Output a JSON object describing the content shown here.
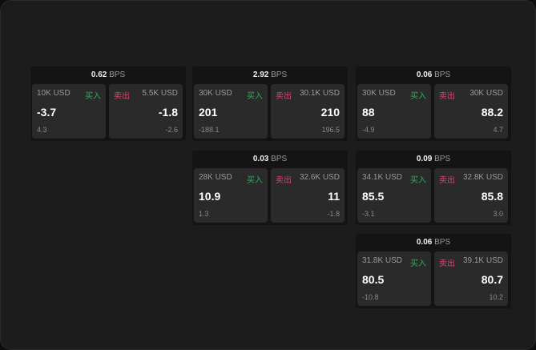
{
  "colors": {
    "buy": "#2fae5a",
    "sell": "#e0406a"
  },
  "unit": "BPS",
  "buy_label": "买入",
  "sell_label": "卖出",
  "cards": [
    {
      "spread": "0.62",
      "buy": {
        "size": "10K USD",
        "price": "-3.7",
        "change": "4.3"
      },
      "sell": {
        "size": "5.5K USD",
        "price": "-1.8",
        "change": "-2.6"
      }
    },
    {
      "spread": "2.92",
      "buy": {
        "size": "30K USD",
        "price": "201",
        "change": "-188.1"
      },
      "sell": {
        "size": "30.1K USD",
        "price": "210",
        "change": "196.5"
      }
    },
    {
      "spread": "0.06",
      "buy": {
        "size": "30K USD",
        "price": "88",
        "change": "-4.9"
      },
      "sell": {
        "size": "30K USD",
        "price": "88.2",
        "change": "4.7"
      }
    },
    {
      "spread": "0.03",
      "buy": {
        "size": "28K USD",
        "price": "10.9",
        "change": "1.3"
      },
      "sell": {
        "size": "32.6K USD",
        "price": "11",
        "change": "-1.8"
      }
    },
    {
      "spread": "0.09",
      "buy": {
        "size": "34.1K USD",
        "price": "85.5",
        "change": "-3.1"
      },
      "sell": {
        "size": "32.8K USD",
        "price": "85.8",
        "change": "3.0"
      }
    },
    {
      "spread": "0.06",
      "buy": {
        "size": "31.8K USD",
        "price": "80.5",
        "change": "-10.8"
      },
      "sell": {
        "size": "39.1K USD",
        "price": "80.7",
        "change": "10.2"
      }
    }
  ]
}
